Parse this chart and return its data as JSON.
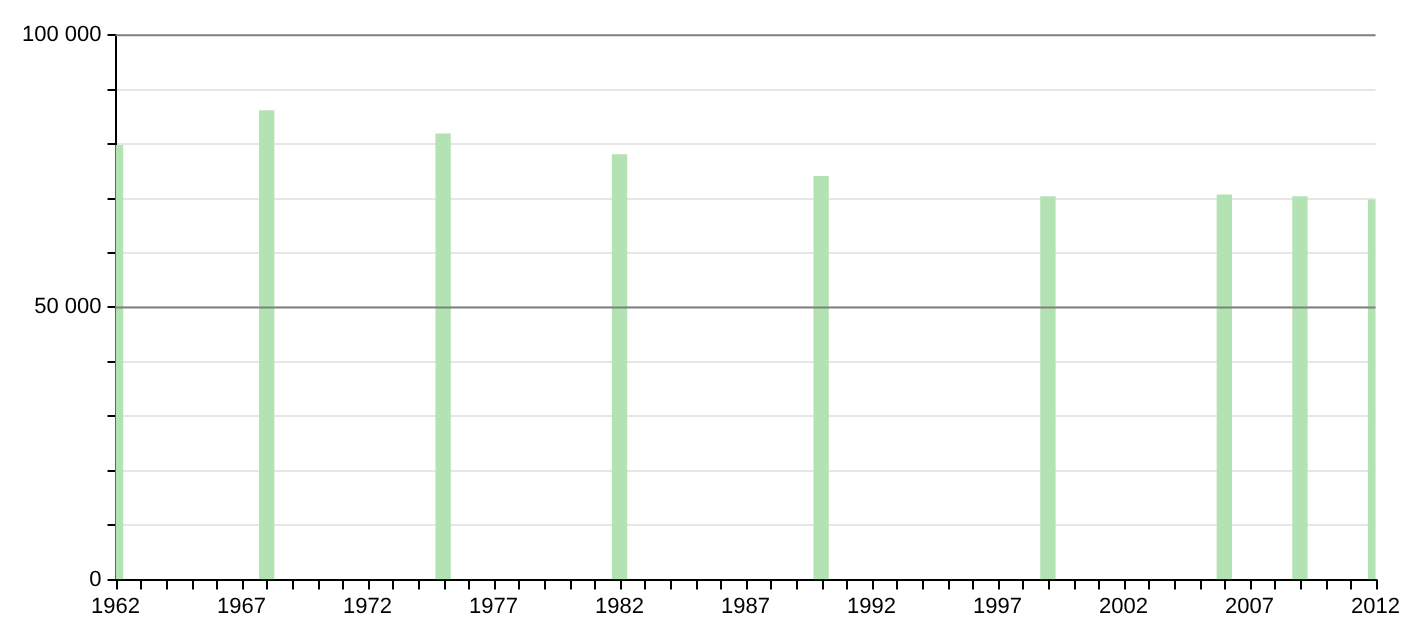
{
  "chart_data": {
    "type": "bar",
    "x": [
      1962,
      1968,
      1975,
      1982,
      1990,
      1999,
      2006,
      2009,
      2012
    ],
    "values": [
      79700,
      86100,
      81800,
      78000,
      74000,
      70300,
      70600,
      70300,
      69700
    ],
    "color": "#b3e2b3",
    "xlim": [
      1962,
      2012
    ],
    "xticks": [
      1962,
      {
        "value": 1963,
        "label": null
      },
      {
        "value": 1964,
        "label": null
      },
      {
        "value": 1965,
        "label": null
      },
      {
        "value": 1966,
        "label": null
      },
      1967,
      {
        "value": 1968,
        "label": null
      },
      {
        "value": 1969,
        "label": null
      },
      {
        "value": 1970,
        "label": null
      },
      {
        "value": 1971,
        "label": null
      },
      1972,
      {
        "value": 1973,
        "label": null
      },
      {
        "value": 1974,
        "label": null
      },
      {
        "value": 1975,
        "label": null
      },
      {
        "value": 1976,
        "label": null
      },
      1977,
      {
        "value": 1978,
        "label": null
      },
      {
        "value": 1979,
        "label": null
      },
      {
        "value": 1980,
        "label": null
      },
      {
        "value": 1981,
        "label": null
      },
      1982,
      {
        "value": 1983,
        "label": null
      },
      {
        "value": 1984,
        "label": null
      },
      {
        "value": 1985,
        "label": null
      },
      {
        "value": 1986,
        "label": null
      },
      1987,
      {
        "value": 1988,
        "label": null
      },
      {
        "value": 1989,
        "label": null
      },
      {
        "value": 1990,
        "label": null
      },
      {
        "value": 1991,
        "label": null
      },
      1992,
      {
        "value": 1993,
        "label": null
      },
      {
        "value": 1994,
        "label": null
      },
      {
        "value": 1995,
        "label": null
      },
      {
        "value": 1996,
        "label": null
      },
      1997,
      {
        "value": 1998,
        "label": null
      },
      {
        "value": 1999,
        "label": null
      },
      {
        "value": 2000,
        "label": null
      },
      {
        "value": 2001,
        "label": null
      },
      2002,
      {
        "value": 2003,
        "label": null
      },
      {
        "value": 2004,
        "label": null
      },
      {
        "value": 2005,
        "label": null
      },
      {
        "value": 2006,
        "label": null
      },
      2007,
      {
        "value": 2008,
        "label": null
      },
      {
        "value": 2009,
        "label": null
      },
      {
        "value": 2010,
        "label": null
      },
      {
        "value": 2011,
        "label": null
      },
      2012
    ],
    "ylim": [
      0,
      100000
    ],
    "yticks": [
      {
        "value": 0,
        "label": "0"
      },
      {
        "value": 10000,
        "label": null
      },
      {
        "value": 20000,
        "label": null
      },
      {
        "value": 30000,
        "label": null
      },
      {
        "value": 40000,
        "label": null
      },
      {
        "value": 50000,
        "label": "50 000"
      },
      {
        "value": 60000,
        "label": null
      },
      {
        "value": 70000,
        "label": null
      },
      {
        "value": 80000,
        "label": null
      },
      {
        "value": 90000,
        "label": null
      },
      {
        "value": 100000,
        "label": "100 000"
      }
    ],
    "ref_lines": [
      {
        "axis": "y",
        "value": 50000,
        "color": "#808080"
      },
      {
        "axis": "y",
        "value": 100000,
        "color": "#808080"
      }
    ],
    "grid": "y",
    "legend": false
  }
}
